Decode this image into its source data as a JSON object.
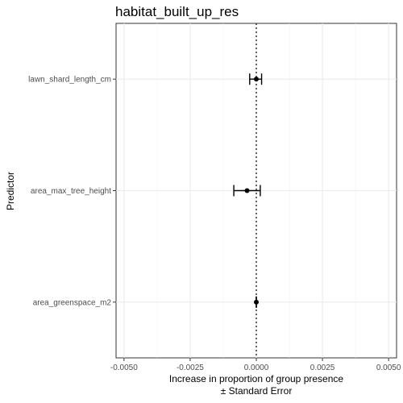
{
  "chart_data": {
    "type": "errorbar",
    "title": "habitat_built_up_res",
    "xlabel": "Increase in proportion of group presence",
    "xlabel_line2": "± Standard Error",
    "ylabel": "Predictor",
    "categories": [
      "lawn_shard_length_cm",
      "area_max_tree_height",
      "area_greenspace_m2"
    ],
    "estimates": [
      0.0,
      -0.00035,
      0.0
    ],
    "error_low": [
      -0.00025,
      -0.00085,
      0.0
    ],
    "error_high": [
      0.0002,
      0.00015,
      0.0
    ],
    "x_ticks": [
      -0.005,
      -0.0025,
      0.0,
      0.0025,
      0.005
    ],
    "x_tick_labels": [
      "-0.0050",
      "-0.0025",
      "0.0000",
      "0.0025",
      "0.0050"
    ],
    "xlim": [
      -0.0053,
      0.0053
    ],
    "reference_line_x": 0.0,
    "grid": true
  }
}
